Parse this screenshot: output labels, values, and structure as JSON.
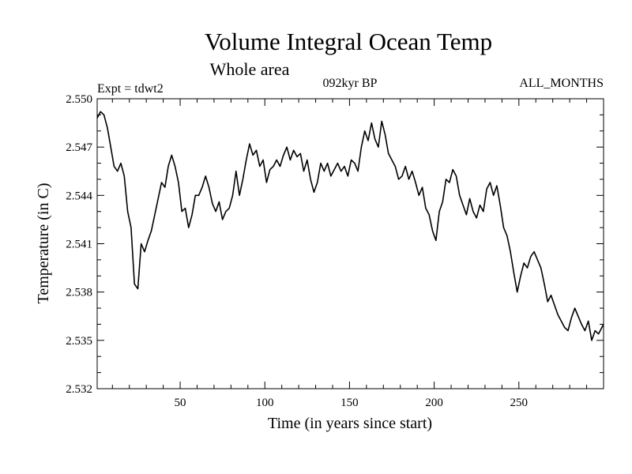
{
  "chart_data": {
    "type": "line",
    "title": "Volume Integral Ocean Temp",
    "subtitle": "Whole area",
    "annotations": {
      "expt": "Expt = tdwt2",
      "period": "092kyr BP",
      "months": "ALL_MONTHS"
    },
    "xlabel": "Time (in years since start)",
    "ylabel": "Temperature (in C)",
    "xlim": [
      1,
      300
    ],
    "ylim": [
      2.532,
      2.55
    ],
    "xticks": [
      50,
      100,
      150,
      200,
      250
    ],
    "xtick_labels": [
      "50",
      "100",
      "150",
      "200",
      "250"
    ],
    "yticks": [
      2.532,
      2.535,
      2.538,
      2.541,
      2.544,
      2.547,
      2.55
    ],
    "ytick_labels": [
      "2.532",
      "2.535",
      "2.538",
      "2.541",
      "2.544",
      "2.547",
      "2.550"
    ],
    "series": [
      {
        "name": "Temperature",
        "x": [
          1,
          3,
          5,
          7,
          9,
          11,
          13,
          15,
          17,
          19,
          21,
          23,
          25,
          27,
          29,
          31,
          33,
          35,
          37,
          39,
          41,
          43,
          45,
          47,
          49,
          51,
          53,
          55,
          57,
          59,
          61,
          63,
          65,
          67,
          69,
          71,
          73,
          75,
          77,
          79,
          81,
          83,
          85,
          87,
          89,
          91,
          93,
          95,
          97,
          99,
          101,
          103,
          105,
          107,
          109,
          111,
          113,
          115,
          117,
          119,
          121,
          123,
          125,
          127,
          129,
          131,
          133,
          135,
          137,
          139,
          141,
          143,
          145,
          147,
          149,
          151,
          153,
          155,
          157,
          159,
          161,
          163,
          165,
          167,
          169,
          171,
          173,
          175,
          177,
          179,
          181,
          183,
          185,
          187,
          189,
          191,
          193,
          195,
          197,
          199,
          201,
          203,
          205,
          207,
          209,
          211,
          213,
          215,
          217,
          219,
          221,
          223,
          225,
          227,
          229,
          231,
          233,
          235,
          237,
          239,
          241,
          243,
          245,
          247,
          249,
          251,
          253,
          255,
          257,
          259,
          261,
          263,
          265,
          267,
          269,
          271,
          273,
          275,
          277,
          279,
          281,
          283,
          285,
          287,
          289,
          291,
          293,
          295,
          297,
          299,
          300
        ],
        "values": [
          2.5488,
          2.5492,
          2.549,
          2.5482,
          2.547,
          2.5458,
          2.5455,
          2.546,
          2.5452,
          2.543,
          2.542,
          2.5385,
          2.5382,
          2.541,
          2.5405,
          2.5412,
          2.5418,
          2.5428,
          2.5438,
          2.5448,
          2.5445,
          2.5458,
          2.5465,
          2.5458,
          2.5448,
          2.543,
          2.5432,
          2.542,
          2.5428,
          2.544,
          2.544,
          2.5445,
          2.5452,
          2.5445,
          2.5435,
          2.543,
          2.5436,
          2.5425,
          2.543,
          2.5432,
          2.544,
          2.5455,
          2.544,
          2.545,
          2.5462,
          2.5472,
          2.5465,
          2.5468,
          2.5458,
          2.5462,
          2.5448,
          2.5456,
          2.5458,
          2.5462,
          2.5458,
          2.5465,
          2.547,
          2.5462,
          2.5468,
          2.5464,
          2.5466,
          2.5455,
          2.5462,
          2.545,
          2.5442,
          2.5448,
          2.546,
          2.5455,
          2.546,
          2.5452,
          2.5456,
          2.546,
          2.5455,
          2.5458,
          2.5452,
          2.5462,
          2.546,
          2.5455,
          2.547,
          2.548,
          2.5474,
          2.5485,
          2.5475,
          2.547,
          2.5486,
          2.5478,
          2.5466,
          2.5462,
          2.5458,
          2.545,
          2.5452,
          2.5458,
          2.545,
          2.5455,
          2.5448,
          2.544,
          2.5445,
          2.5432,
          2.5428,
          2.5418,
          2.5412,
          2.543,
          2.5436,
          2.545,
          2.5448,
          2.5456,
          2.5452,
          2.544,
          2.5434,
          2.5428,
          2.5438,
          2.543,
          2.5426,
          2.5434,
          2.543,
          2.5444,
          2.5448,
          2.544,
          2.5446,
          2.5434,
          2.542,
          2.5415,
          2.5405,
          2.5392,
          2.538,
          2.539,
          2.5398,
          2.5395,
          2.5402,
          2.5405,
          2.54,
          2.5395,
          2.5385,
          2.5374,
          2.5378,
          2.5372,
          2.5366,
          2.5362,
          2.5358,
          2.5356,
          2.5364,
          2.537,
          2.5365,
          2.536,
          2.5356,
          2.5362,
          2.535,
          2.5356,
          2.5354,
          2.5358,
          2.536
        ]
      }
    ]
  }
}
